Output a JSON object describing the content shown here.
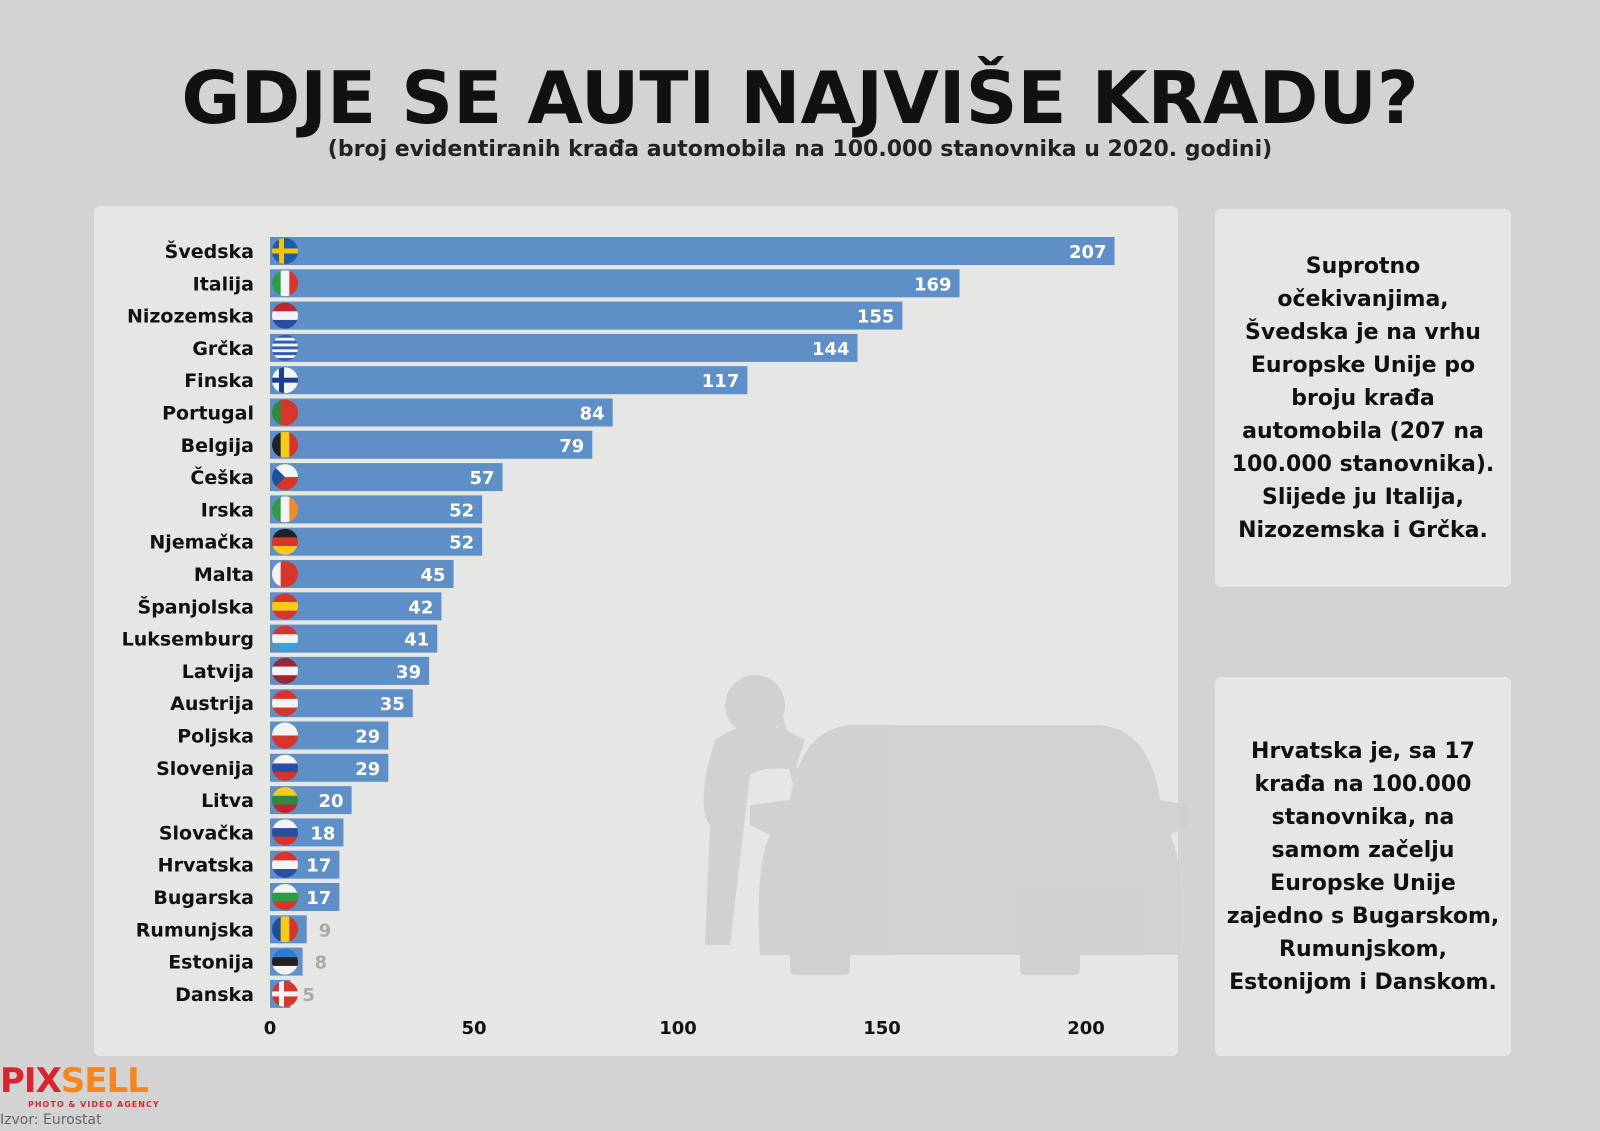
{
  "title": "GDJE SE AUTI NAJVIŠE KRADU?",
  "subtitle": "(broj evidentiranih krađa automobila na 100.000 stanovnika u 2020. godini)",
  "chart_data": {
    "type": "bar",
    "orientation": "horizontal",
    "categories": [
      "Švedska",
      "Italija",
      "Nizozemska",
      "Grčka",
      "Finska",
      "Portugal",
      "Belgija",
      "Češka",
      "Irska",
      "Njemačka",
      "Malta",
      "Španjolska",
      "Luksemburg",
      "Latvija",
      "Austrija",
      "Poljska",
      "Slovenija",
      "Litva",
      "Slovačka",
      "Hrvatska",
      "Bugarska",
      "Rumunjska",
      "Estonija",
      "Danska"
    ],
    "values": [
      207,
      169,
      155,
      144,
      117,
      84,
      79,
      57,
      52,
      52,
      45,
      42,
      41,
      39,
      35,
      29,
      29,
      20,
      18,
      17,
      17,
      9,
      8,
      5
    ],
    "flags": [
      "se",
      "it",
      "nl",
      "gr",
      "fi",
      "pt",
      "be",
      "cz",
      "ie",
      "de",
      "mt",
      "es",
      "lu",
      "lv",
      "at",
      "pl",
      "si",
      "lt",
      "sk",
      "hr",
      "bg",
      "ro",
      "ee",
      "dk"
    ],
    "xticks": [
      0,
      50,
      100,
      150,
      200
    ],
    "xlim": [
      0,
      210
    ],
    "bar_color": "#5f8fc7"
  },
  "notes": {
    "box1": "Suprotno očekivanjima, Švedska je na vrhu Europske Unije po broju krađa automobila (207 na 100.000 stanovnika). Slijede ju Italija, Nizozemska i Grčka.",
    "box2": "Hrvatska je, sa 17 krađa na 100.000 stanovnika, na samom začelju Europske Unije zajedno s Bugarskom, Rumunjskom, Estonijom i Danskom."
  },
  "logo": {
    "part1": "PIX",
    "part2": "SELL",
    "tagline": "PHOTO & VIDEO AGENCY"
  },
  "source": "Izvor: Eurostat"
}
